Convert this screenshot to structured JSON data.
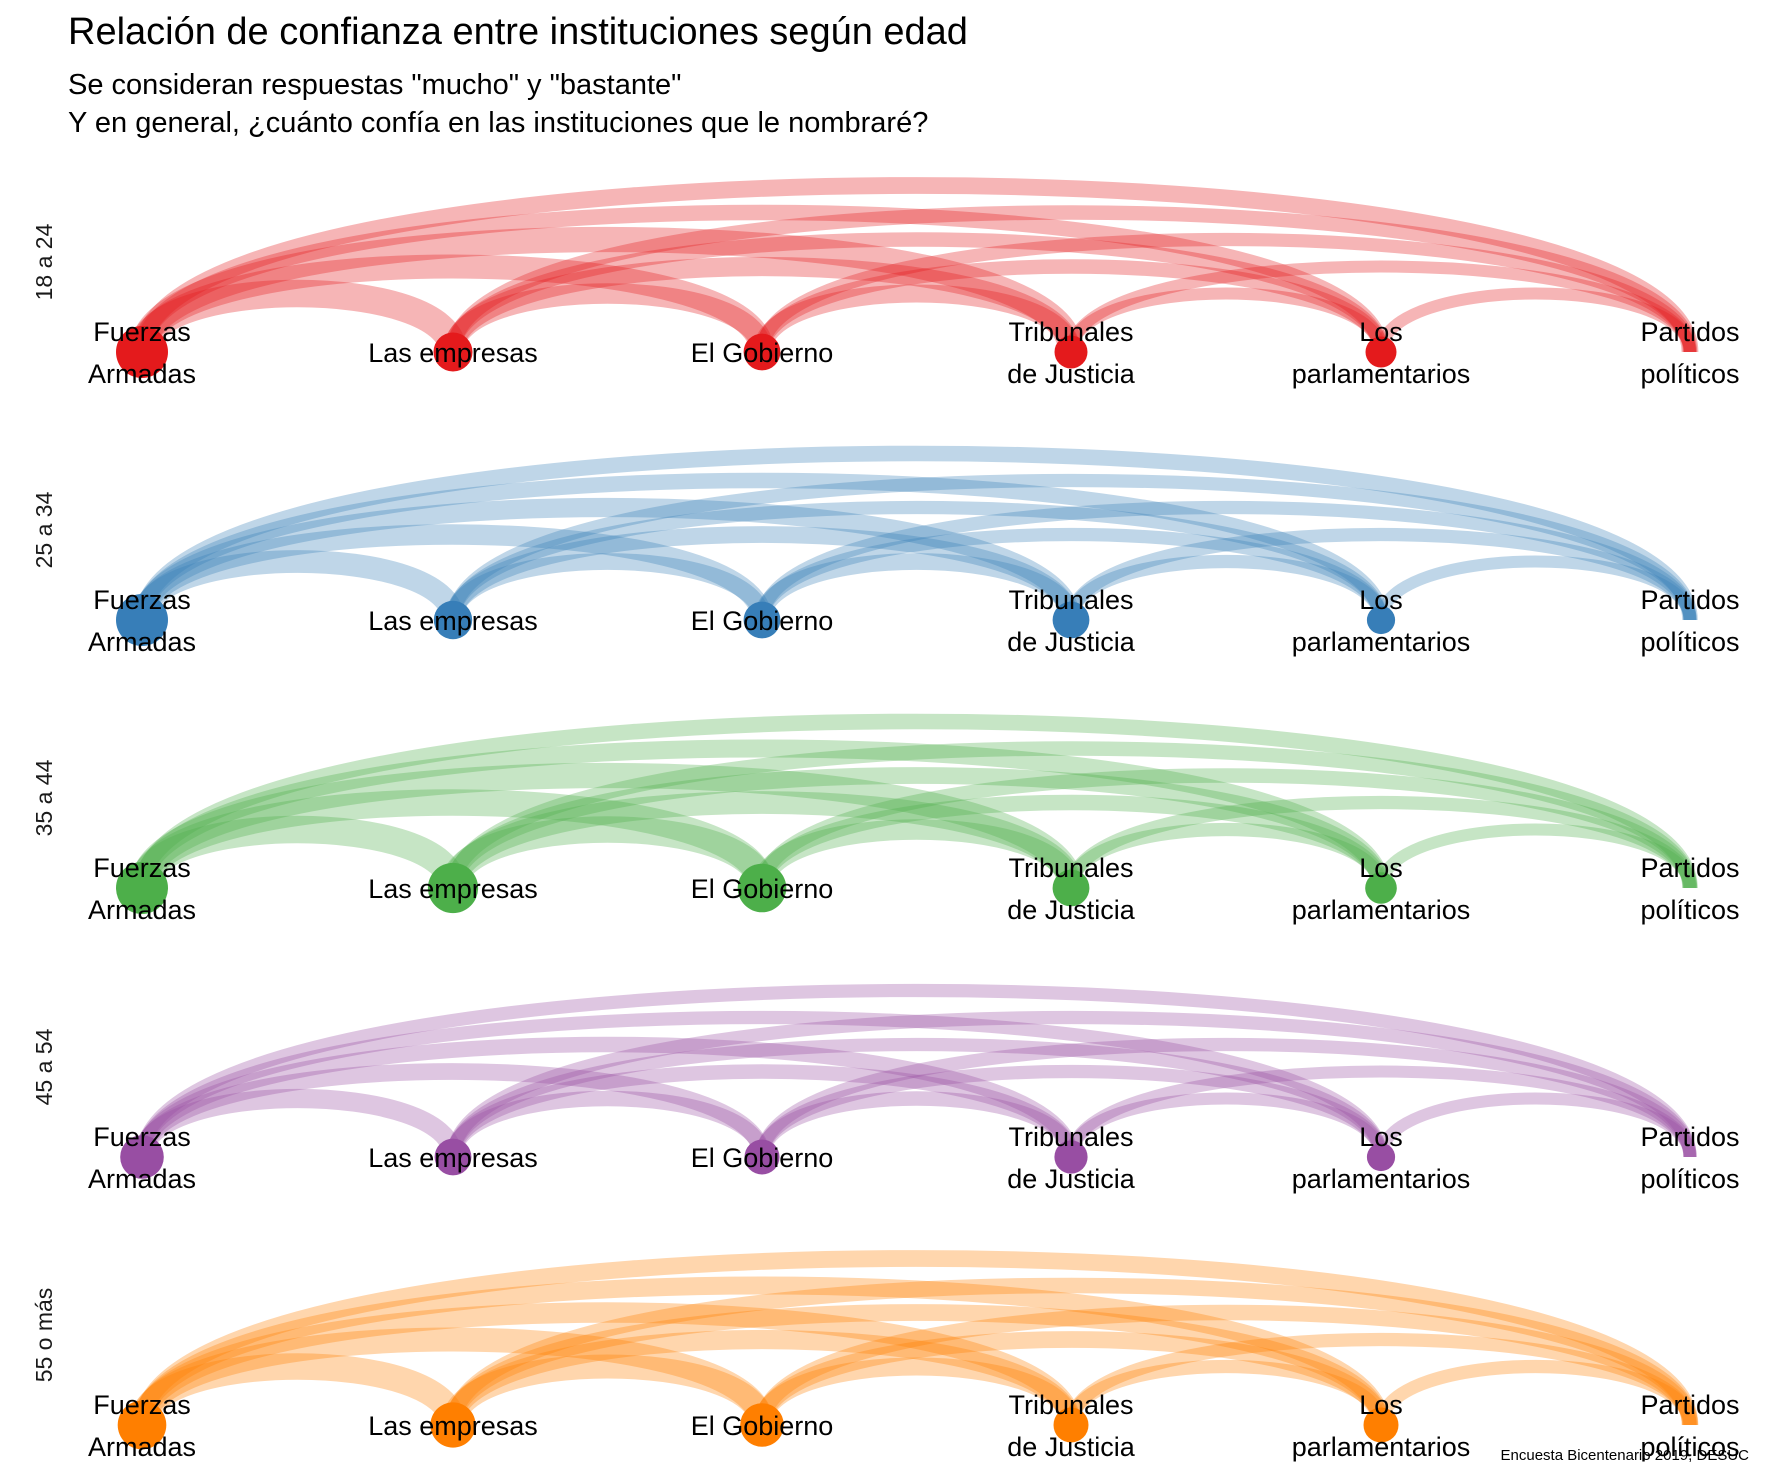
{
  "title": "Relación de confianza entre instituciones según edad",
  "subtitle_line1": "Se consideran respuestas \"mucho\" y \"bastante\"",
  "subtitle_line2": "Y en general, ¿cuánto confía en las instituciones que le nombraré?",
  "caption": "Encuesta Bicentenario 2019, DESUC",
  "chart_data": {
    "type": "arc",
    "nodes": [
      {
        "id": "ffaa",
        "label_lines": [
          "Fuerzas",
          "Armadas"
        ]
      },
      {
        "id": "emp",
        "label_lines": [
          "Las empresas"
        ]
      },
      {
        "id": "gob",
        "label_lines": [
          "El Gobierno"
        ]
      },
      {
        "id": "trib",
        "label_lines": [
          "Tribunales",
          "de Justicia"
        ]
      },
      {
        "id": "parl",
        "label_lines": [
          "Los",
          "parlamentarios"
        ]
      },
      {
        "id": "part",
        "label_lines": [
          "Partidos",
          "políticos"
        ]
      }
    ],
    "panels": [
      {
        "group": "18 a 24",
        "color": "#E41A1C",
        "node_sizes": [
          1.0,
          0.62,
          0.55,
          0.44,
          0.38,
          0.0
        ],
        "links": [
          {
            "from": 0,
            "to": 1,
            "weight": 0.9
          },
          {
            "from": 0,
            "to": 2,
            "weight": 0.75
          },
          {
            "from": 0,
            "to": 3,
            "weight": 0.8
          },
          {
            "from": 0,
            "to": 4,
            "weight": 0.4
          },
          {
            "from": 0,
            "to": 5,
            "weight": 0.45
          },
          {
            "from": 1,
            "to": 2,
            "weight": 0.6
          },
          {
            "from": 1,
            "to": 3,
            "weight": 0.55
          },
          {
            "from": 1,
            "to": 4,
            "weight": 0.35
          },
          {
            "from": 1,
            "to": 5,
            "weight": 0.35
          },
          {
            "from": 2,
            "to": 3,
            "weight": 0.5
          },
          {
            "from": 2,
            "to": 4,
            "weight": 0.35
          },
          {
            "from": 2,
            "to": 5,
            "weight": 0.3
          },
          {
            "from": 3,
            "to": 4,
            "weight": 0.25
          },
          {
            "from": 3,
            "to": 5,
            "weight": 0.25
          },
          {
            "from": 4,
            "to": 5,
            "weight": 0.25
          }
        ]
      },
      {
        "group": "25 a 34",
        "color": "#377EB8",
        "node_sizes": [
          1.0,
          0.6,
          0.55,
          0.55,
          0.3,
          0.0
        ],
        "links": [
          {
            "from": 0,
            "to": 1,
            "weight": 0.7
          },
          {
            "from": 0,
            "to": 2,
            "weight": 0.6
          },
          {
            "from": 0,
            "to": 3,
            "weight": 0.55
          },
          {
            "from": 0,
            "to": 4,
            "weight": 0.4
          },
          {
            "from": 0,
            "to": 5,
            "weight": 0.4
          },
          {
            "from": 1,
            "to": 2,
            "weight": 0.45
          },
          {
            "from": 1,
            "to": 3,
            "weight": 0.45
          },
          {
            "from": 1,
            "to": 4,
            "weight": 0.3
          },
          {
            "from": 1,
            "to": 5,
            "weight": 0.3
          },
          {
            "from": 2,
            "to": 3,
            "weight": 0.45
          },
          {
            "from": 2,
            "to": 4,
            "weight": 0.3
          },
          {
            "from": 2,
            "to": 5,
            "weight": 0.3
          },
          {
            "from": 3,
            "to": 4,
            "weight": 0.3
          },
          {
            "from": 3,
            "to": 5,
            "weight": 0.3
          },
          {
            "from": 4,
            "to": 5,
            "weight": 0.25
          }
        ]
      },
      {
        "group": "35 a 44",
        "color": "#4DAF4A",
        "node_sizes": [
          1.0,
          0.95,
          0.9,
          0.55,
          0.4,
          0.0
        ],
        "links": [
          {
            "from": 0,
            "to": 1,
            "weight": 0.9
          },
          {
            "from": 0,
            "to": 2,
            "weight": 0.85
          },
          {
            "from": 0,
            "to": 3,
            "weight": 0.8
          },
          {
            "from": 0,
            "to": 4,
            "weight": 0.5
          },
          {
            "from": 0,
            "to": 5,
            "weight": 0.4
          },
          {
            "from": 1,
            "to": 2,
            "weight": 0.85
          },
          {
            "from": 1,
            "to": 3,
            "weight": 0.7
          },
          {
            "from": 1,
            "to": 4,
            "weight": 0.45
          },
          {
            "from": 1,
            "to": 5,
            "weight": 0.35
          },
          {
            "from": 2,
            "to": 3,
            "weight": 0.6
          },
          {
            "from": 2,
            "to": 4,
            "weight": 0.4
          },
          {
            "from": 2,
            "to": 5,
            "weight": 0.35
          },
          {
            "from": 3,
            "to": 4,
            "weight": 0.3
          },
          {
            "from": 3,
            "to": 5,
            "weight": 0.3
          },
          {
            "from": 4,
            "to": 5,
            "weight": 0.25
          }
        ]
      },
      {
        "group": "45 a 54",
        "color": "#984EA3",
        "node_sizes": [
          0.75,
          0.55,
          0.5,
          0.45,
          0.3,
          0.0
        ],
        "links": [
          {
            "from": 0,
            "to": 1,
            "weight": 0.55
          },
          {
            "from": 0,
            "to": 2,
            "weight": 0.45
          },
          {
            "from": 0,
            "to": 3,
            "weight": 0.4
          },
          {
            "from": 0,
            "to": 4,
            "weight": 0.3
          },
          {
            "from": 0,
            "to": 5,
            "weight": 0.3
          },
          {
            "from": 1,
            "to": 2,
            "weight": 0.4
          },
          {
            "from": 1,
            "to": 3,
            "weight": 0.35
          },
          {
            "from": 1,
            "to": 4,
            "weight": 0.3
          },
          {
            "from": 1,
            "to": 5,
            "weight": 0.3
          },
          {
            "from": 2,
            "to": 3,
            "weight": 0.35
          },
          {
            "from": 2,
            "to": 4,
            "weight": 0.3
          },
          {
            "from": 2,
            "to": 5,
            "weight": 0.3
          },
          {
            "from": 3,
            "to": 4,
            "weight": 0.25
          },
          {
            "from": 3,
            "to": 5,
            "weight": 0.25
          },
          {
            "from": 4,
            "to": 5,
            "weight": 0.25
          }
        ]
      },
      {
        "group": "55 o más",
        "color": "#FF7F00",
        "node_sizes": [
          0.9,
          0.8,
          0.75,
          0.5,
          0.5,
          0.0
        ],
        "links": [
          {
            "from": 0,
            "to": 1,
            "weight": 0.85
          },
          {
            "from": 0,
            "to": 2,
            "weight": 0.75
          },
          {
            "from": 0,
            "to": 3,
            "weight": 0.6
          },
          {
            "from": 0,
            "to": 4,
            "weight": 0.5
          },
          {
            "from": 0,
            "to": 5,
            "weight": 0.45
          },
          {
            "from": 1,
            "to": 2,
            "weight": 0.75
          },
          {
            "from": 1,
            "to": 3,
            "weight": 0.55
          },
          {
            "from": 1,
            "to": 4,
            "weight": 0.45
          },
          {
            "from": 1,
            "to": 5,
            "weight": 0.4
          },
          {
            "from": 2,
            "to": 3,
            "weight": 0.5
          },
          {
            "from": 2,
            "to": 4,
            "weight": 0.45
          },
          {
            "from": 2,
            "to": 5,
            "weight": 0.4
          },
          {
            "from": 3,
            "to": 4,
            "weight": 0.3
          },
          {
            "from": 3,
            "to": 5,
            "weight": 0.3
          },
          {
            "from": 4,
            "to": 5,
            "weight": 0.3
          }
        ]
      }
    ]
  }
}
